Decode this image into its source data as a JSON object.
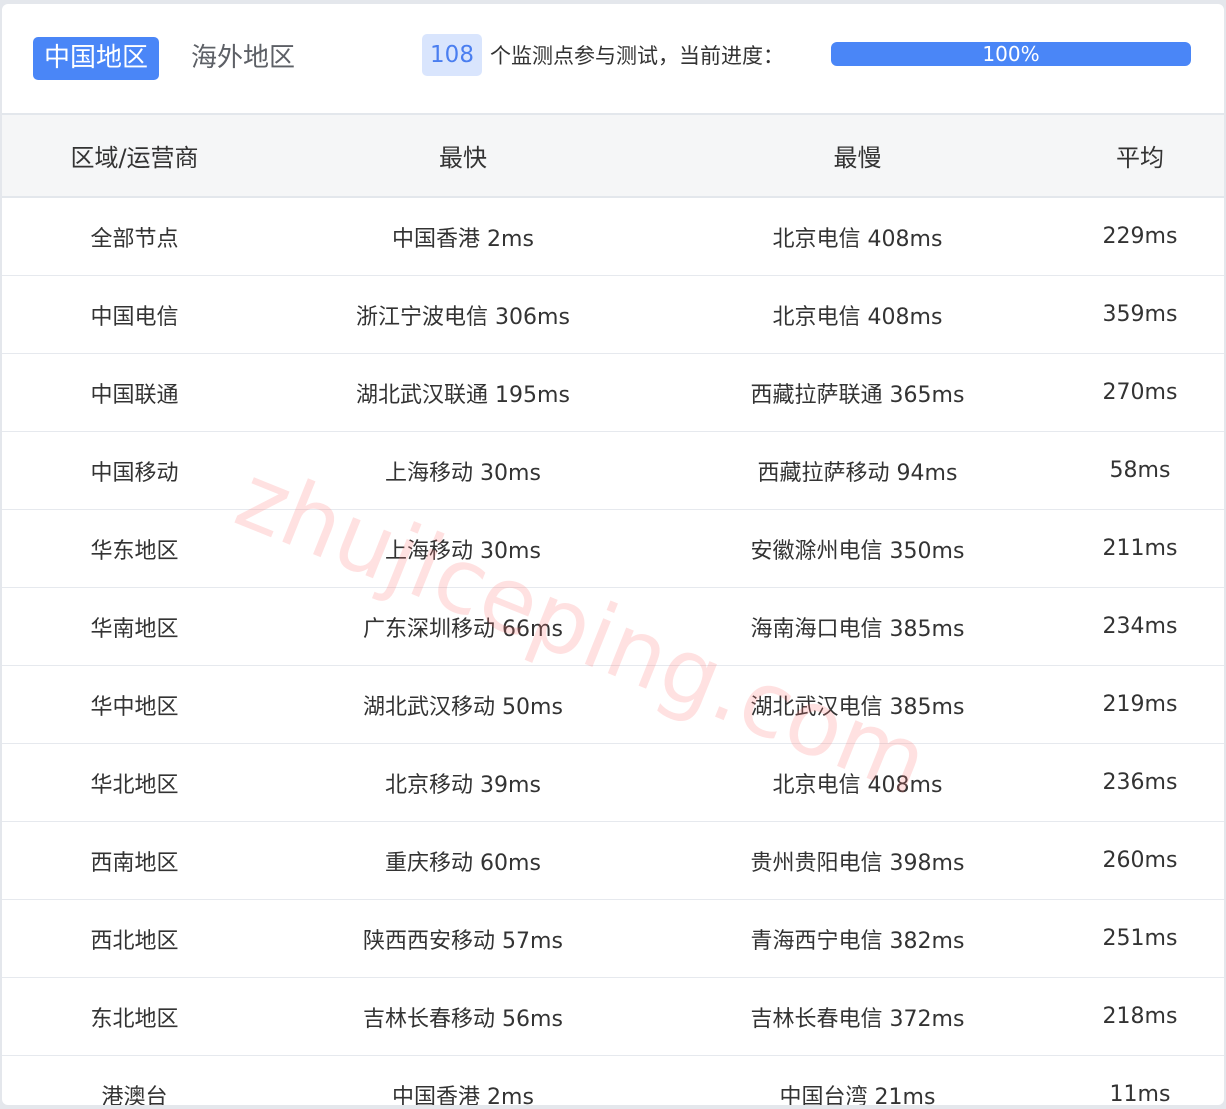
{
  "tabs": [
    {
      "label": "中国地区",
      "active": true
    },
    {
      "label": "海外地区",
      "active": false
    }
  ],
  "monitor": {
    "count": "108",
    "text": "个监测点参与测试，当前进度：",
    "progress_label": "100%",
    "progress": 100
  },
  "accent": "#4a86f7",
  "watermark": "zhujiceping.com",
  "table": {
    "headers": [
      "区域/运营商",
      "最快",
      "最慢",
      "平均"
    ],
    "rows": [
      [
        "全部节点",
        "中国香港 2ms",
        "北京电信 408ms",
        "229ms"
      ],
      [
        "中国电信",
        "浙江宁波电信 306ms",
        "北京电信 408ms",
        "359ms"
      ],
      [
        "中国联通",
        "湖北武汉联通 195ms",
        "西藏拉萨联通 365ms",
        "270ms"
      ],
      [
        "中国移动",
        "上海移动 30ms",
        "西藏拉萨移动 94ms",
        "58ms"
      ],
      [
        "华东地区",
        "上海移动 30ms",
        "安徽滁州电信 350ms",
        "211ms"
      ],
      [
        "华南地区",
        "广东深圳移动 66ms",
        "海南海口电信 385ms",
        "234ms"
      ],
      [
        "华中地区",
        "湖北武汉移动 50ms",
        "湖北武汉电信 385ms",
        "219ms"
      ],
      [
        "华北地区",
        "北京移动 39ms",
        "北京电信 408ms",
        "236ms"
      ],
      [
        "西南地区",
        "重庆移动 60ms",
        "贵州贵阳电信 398ms",
        "260ms"
      ],
      [
        "西北地区",
        "陕西西安移动 57ms",
        "青海西宁电信 382ms",
        "251ms"
      ],
      [
        "东北地区",
        "吉林长春移动 56ms",
        "吉林长春电信 372ms",
        "218ms"
      ],
      [
        "港澳台",
        "中国香港 2ms",
        "中国台湾 21ms",
        "11ms"
      ]
    ]
  }
}
